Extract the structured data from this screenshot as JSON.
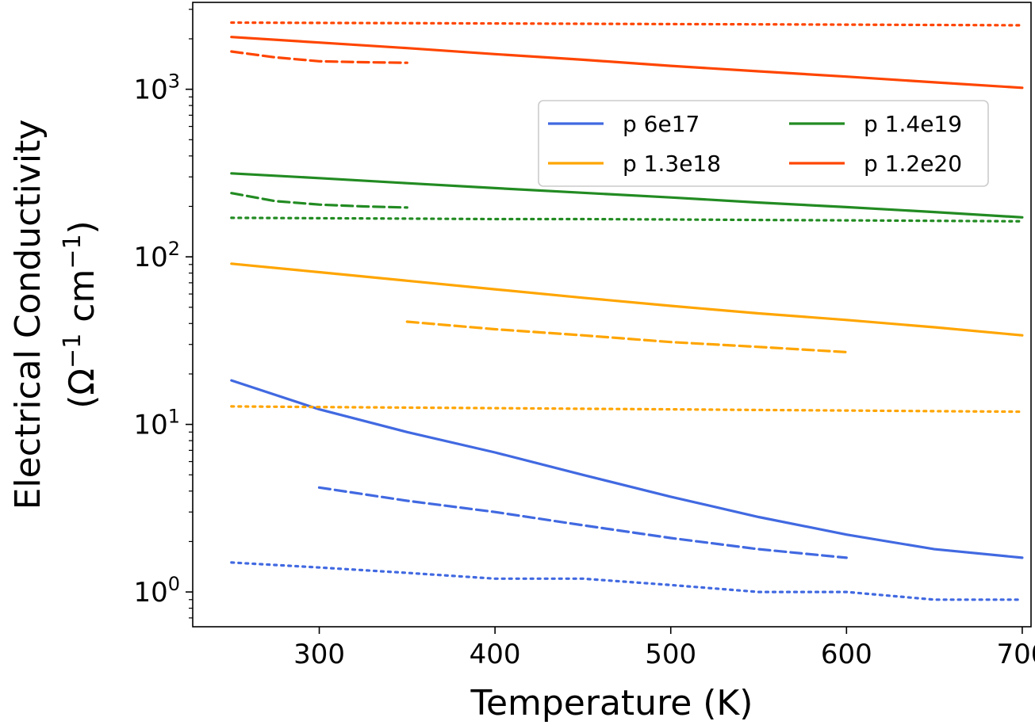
{
  "chart_data": {
    "type": "line",
    "title": "",
    "xlabel": "Temperature (K)",
    "ylabel_line1": "Electrical Conductivity",
    "ylabel_line2_prefix": "(Ω",
    "ylabel_sup1": "−1",
    "ylabel_line2_mid": " cm",
    "ylabel_sup2": "−1",
    "ylabel_line2_suffix": ")",
    "yscale": "log",
    "xlim": [
      228,
      705
    ],
    "ylim": [
      0.62,
      3300
    ],
    "x_ticks": [
      {
        "value": 300,
        "label": "300"
      },
      {
        "value": 400,
        "label": "400"
      },
      {
        "value": 500,
        "label": "500"
      },
      {
        "value": 600,
        "label": "600"
      },
      {
        "value": 700,
        "label": "700"
      }
    ],
    "y_ticks": [
      {
        "value": 1,
        "base": "10",
        "exp": "0"
      },
      {
        "value": 10,
        "base": "10",
        "exp": "1"
      },
      {
        "value": 100,
        "base": "10",
        "exp": "2"
      },
      {
        "value": 1000,
        "base": "10",
        "exp": "3"
      }
    ],
    "legend_position": "upper-right",
    "legend_columns": 2,
    "series": [
      {
        "name": "p 6e17",
        "color": "#4169E1",
        "style": "solid",
        "in_legend": true,
        "x": [
          250,
          300,
          350,
          400,
          450,
          500,
          550,
          600,
          650,
          700
        ],
        "y": [
          18.3,
          12.3,
          9.0,
          6.8,
          5.0,
          3.7,
          2.8,
          2.2,
          1.8,
          1.6
        ]
      },
      {
        "name": "p 6e17 (dashed)",
        "color": "#4169E1",
        "style": "dashed",
        "in_legend": false,
        "x": [
          300,
          350,
          400,
          450,
          500,
          550,
          600
        ],
        "y": [
          4.2,
          3.5,
          3.0,
          2.5,
          2.1,
          1.8,
          1.6
        ]
      },
      {
        "name": "p 6e17 (dotted)",
        "color": "#4169E1",
        "style": "dotted",
        "in_legend": false,
        "x": [
          250,
          300,
          350,
          400,
          450,
          500,
          550,
          600,
          650,
          700
        ],
        "y": [
          1.5,
          1.4,
          1.3,
          1.2,
          1.2,
          1.1,
          1.0,
          1.0,
          0.9,
          0.9
        ]
      },
      {
        "name": "p 1.3e18",
        "color": "#FFA500",
        "style": "solid",
        "in_legend": true,
        "x": [
          250,
          300,
          350,
          400,
          450,
          500,
          550,
          600,
          650,
          700
        ],
        "y": [
          91,
          81,
          72,
          64,
          57,
          51,
          46,
          42,
          38,
          34
        ]
      },
      {
        "name": "p 1.3e18 (dashed)",
        "color": "#FFA500",
        "style": "dashed",
        "in_legend": false,
        "x": [
          350,
          400,
          450,
          500,
          550,
          600
        ],
        "y": [
          41,
          37,
          34,
          31,
          29,
          27
        ]
      },
      {
        "name": "p 1.3e18 (dotted)",
        "color": "#FFA500",
        "style": "dotted",
        "in_legend": false,
        "x": [
          250,
          300,
          350,
          400,
          450,
          500,
          550,
          600,
          650,
          700
        ],
        "y": [
          12.8,
          12.7,
          12.6,
          12.5,
          12.4,
          12.3,
          12.2,
          12.1,
          12.0,
          11.9
        ]
      },
      {
        "name": "p 1.4e19",
        "color": "#228B22",
        "style": "solid",
        "in_legend": true,
        "x": [
          250,
          300,
          350,
          400,
          450,
          500,
          550,
          600,
          650,
          700
        ],
        "y": [
          315,
          295,
          275,
          257,
          241,
          226,
          211,
          198,
          185,
          172
        ]
      },
      {
        "name": "p 1.4e19 (dashed)",
        "color": "#228B22",
        "style": "dashed",
        "in_legend": false,
        "x": [
          250,
          275,
          300,
          325,
          350
        ],
        "y": [
          240,
          215,
          205,
          200,
          197
        ]
      },
      {
        "name": "p 1.4e19 (dotted)",
        "color": "#228B22",
        "style": "dotted",
        "in_legend": false,
        "x": [
          250,
          300,
          350,
          400,
          450,
          500,
          550,
          600,
          650,
          700
        ],
        "y": [
          171,
          170,
          169,
          168,
          168,
          167,
          166,
          165,
          164,
          163
        ]
      },
      {
        "name": "p 1.2e20",
        "color": "#FF4500",
        "style": "solid",
        "in_legend": true,
        "x": [
          250,
          300,
          350,
          400,
          450,
          500,
          550,
          600,
          650,
          700
        ],
        "y": [
          2050,
          1900,
          1760,
          1620,
          1500,
          1380,
          1280,
          1190,
          1100,
          1020
        ]
      },
      {
        "name": "p 1.2e20 (dashed)",
        "color": "#FF4500",
        "style": "dashed",
        "in_legend": false,
        "x": [
          250,
          275,
          300,
          325,
          350
        ],
        "y": [
          1680,
          1550,
          1470,
          1450,
          1440
        ]
      },
      {
        "name": "p 1.2e20 (dotted)",
        "color": "#FF4500",
        "style": "dotted",
        "in_legend": false,
        "x": [
          250,
          300,
          350,
          400,
          450,
          500,
          550,
          600,
          650,
          700
        ],
        "y": [
          2500,
          2490,
          2480,
          2470,
          2460,
          2450,
          2440,
          2430,
          2420,
          2410
        ]
      }
    ]
  }
}
